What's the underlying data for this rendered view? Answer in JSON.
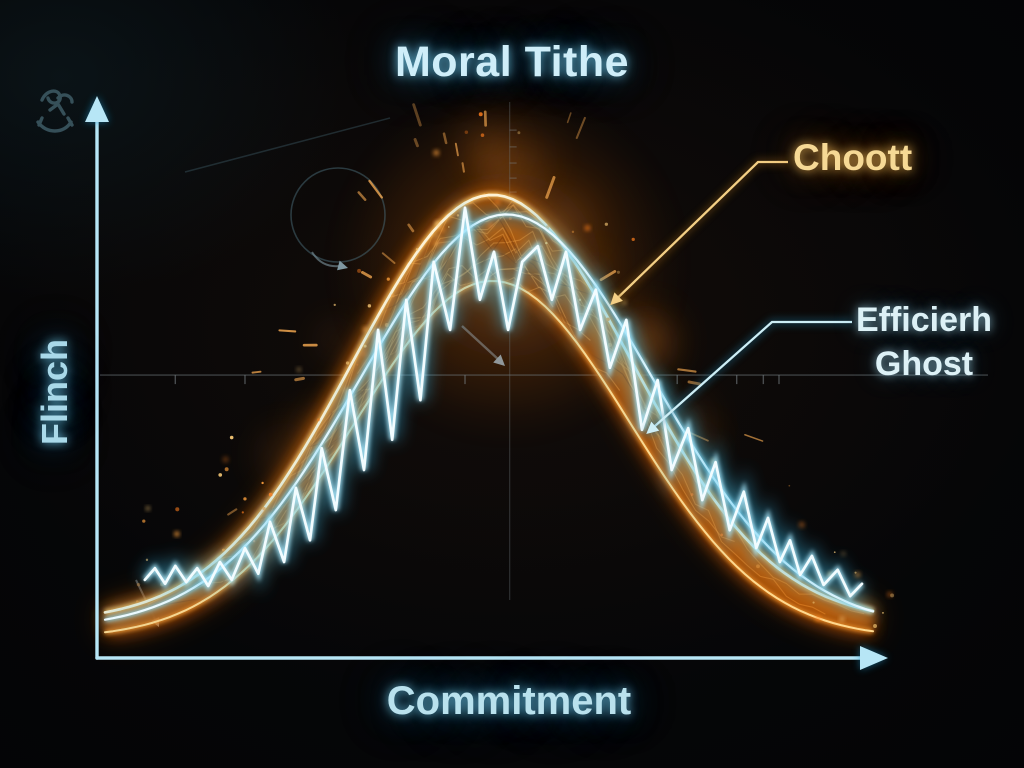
{
  "title": "Moral Tithe",
  "axes": {
    "x_label": "Commitment",
    "y_label": "Flinch"
  },
  "annotations": {
    "choott": {
      "label": "Choott",
      "color": "#f6d995"
    },
    "ghost": {
      "label": "Efficierh Ghost",
      "lines": [
        "Efficierh",
        "Ghost"
      ],
      "color": "#ddf1f6"
    }
  },
  "icons": [
    {
      "name": "scribble-glyph",
      "meaning": "hand-drawn doodle near y-axis arrow"
    },
    {
      "name": "y-axis-arrow",
      "meaning": "arrow pointing up"
    },
    {
      "name": "x-axis-arrow",
      "meaning": "arrow pointing right"
    }
  ],
  "colors": {
    "background": "#050507",
    "axis": "#a9dff2",
    "title_text": "#cfeef9",
    "bell_orange": "#ffb347",
    "zigzag_cyan": "#aee6fa",
    "grid_gray": "#6f787c",
    "choott_label": "#f6d995",
    "ghost_label": "#ddf1f6"
  },
  "chart_data": {
    "type": "line",
    "title": "Moral Tithe",
    "xlabel": "Commitment",
    "ylabel": "Flinch",
    "axis_numeric_labels": false,
    "x_range_normalized": [
      0,
      1
    ],
    "y_range_normalized": [
      0,
      1
    ],
    "legend": "none (labels attached by leader arrows)",
    "gridlines": {
      "h": 0.507,
      "h_ticks": [
        0.1,
        0.189,
        0.47,
        0.741,
        0.817,
        0.851,
        0.871
      ],
      "v": 0.527,
      "v_ticks": [
        0.946,
        0.916,
        0.887,
        0.86,
        0.835
      ]
    },
    "series": [
      {
        "name": "Choott",
        "type": "gaussian_bell",
        "color": "#ffb347",
        "center": 0.505,
        "sigma": 0.179,
        "peak": 0.83,
        "base": 0.065
      },
      {
        "name": "Efficierh Ghost (smooth)",
        "type": "gaussian_bell",
        "color": "#7fdbff",
        "center": 0.523,
        "sigma": 0.186,
        "peak": 0.795,
        "base": 0.052
      },
      {
        "name": "Efficierh Ghost (zigzag)",
        "type": "zigzag",
        "color": "#aee6fa",
        "points": [
          [
            0.061,
            0.14
          ],
          [
            0.074,
            0.161
          ],
          [
            0.087,
            0.133
          ],
          [
            0.1,
            0.165
          ],
          [
            0.114,
            0.136
          ],
          [
            0.128,
            0.161
          ],
          [
            0.142,
            0.129
          ],
          [
            0.157,
            0.172
          ],
          [
            0.172,
            0.14
          ],
          [
            0.189,
            0.197
          ],
          [
            0.206,
            0.151
          ],
          [
            0.221,
            0.244
          ],
          [
            0.239,
            0.172
          ],
          [
            0.254,
            0.305
          ],
          [
            0.272,
            0.211
          ],
          [
            0.287,
            0.376
          ],
          [
            0.305,
            0.265
          ],
          [
            0.323,
            0.48
          ],
          [
            0.341,
            0.337
          ],
          [
            0.359,
            0.588
          ],
          [
            0.377,
            0.391
          ],
          [
            0.395,
            0.642
          ],
          [
            0.413,
            0.462
          ],
          [
            0.43,
            0.71
          ],
          [
            0.451,
            0.588
          ],
          [
            0.47,
            0.807
          ],
          [
            0.489,
            0.642
          ],
          [
            0.507,
            0.728
          ],
          [
            0.525,
            0.588
          ],
          [
            0.543,
            0.71
          ],
          [
            0.563,
            0.738
          ],
          [
            0.581,
            0.642
          ],
          [
            0.599,
            0.728
          ],
          [
            0.617,
            0.588
          ],
          [
            0.637,
            0.66
          ],
          [
            0.655,
            0.52
          ],
          [
            0.676,
            0.606
          ],
          [
            0.696,
            0.409
          ],
          [
            0.716,
            0.498
          ],
          [
            0.734,
            0.337
          ],
          [
            0.755,
            0.412
          ],
          [
            0.773,
            0.283
          ],
          [
            0.79,
            0.351
          ],
          [
            0.808,
            0.229
          ],
          [
            0.826,
            0.298
          ],
          [
            0.842,
            0.197
          ],
          [
            0.857,
            0.251
          ],
          [
            0.872,
            0.172
          ],
          [
            0.885,
            0.211
          ],
          [
            0.898,
            0.149
          ],
          [
            0.913,
            0.183
          ],
          [
            0.928,
            0.131
          ],
          [
            0.946,
            0.158
          ],
          [
            0.962,
            0.111
          ],
          [
            0.977,
            0.133
          ]
        ]
      }
    ],
    "annotations": [
      {
        "text": "Choott",
        "color": "#f6d995",
        "target": [
          0.658,
          0.636
        ]
      },
      {
        "text": "Efficierh Ghost",
        "color": "#ddf1f6",
        "target": [
          0.704,
          0.405
        ]
      }
    ]
  }
}
